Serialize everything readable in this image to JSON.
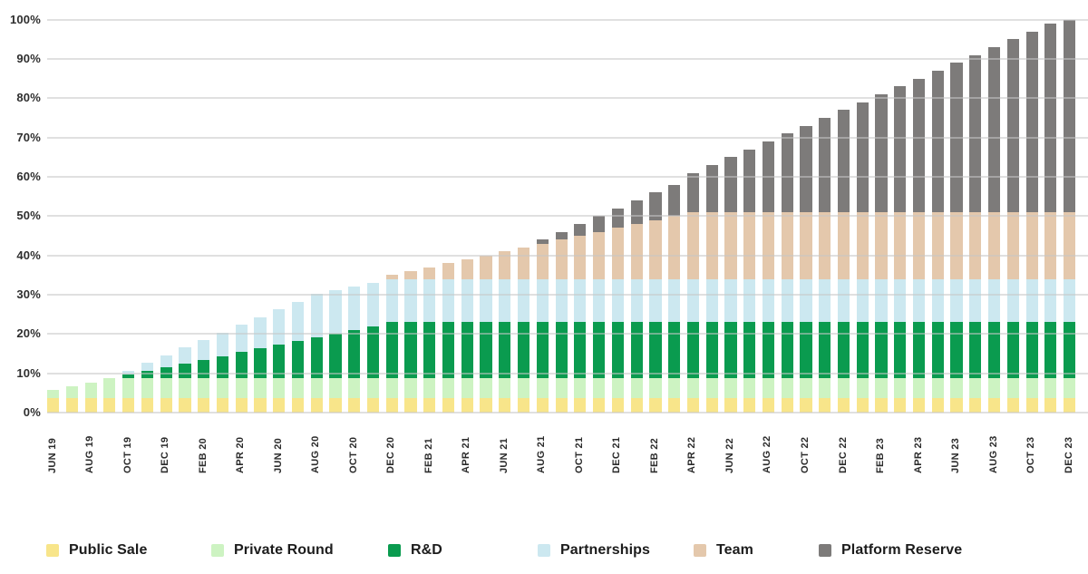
{
  "chart_data": {
    "type": "bar",
    "stacked": true,
    "unit": "%",
    "grid": true,
    "legend_position": "bottom",
    "ylim": [
      0,
      100
    ],
    "y_ticks": [
      "0%",
      "10%",
      "20%",
      "30%",
      "40%",
      "50%",
      "60%",
      "70%",
      "80%",
      "90%",
      "100%"
    ],
    "x_label_every": 2,
    "x": [
      "JUN 19",
      "JUL 19",
      "AUG 19",
      "SEP 19",
      "OCT 19",
      "NOV 19",
      "DEC 19",
      "JAN 20",
      "FEB 20",
      "MAR 20",
      "APR 20",
      "MAY 20",
      "JUN 20",
      "JUL 20",
      "AUG 20",
      "SEP 20",
      "OCT 20",
      "NOV 20",
      "DEC 20",
      "JAN 21",
      "FEB 21",
      "MAR 21",
      "APR 21",
      "MAY 21",
      "JUN 21",
      "JUL 21",
      "AUG 21",
      "SEP 21",
      "OCT 21",
      "NOV 21",
      "DEC 21",
      "JAN 22",
      "FEB 22",
      "MAR 22",
      "APR 22",
      "MAY 22",
      "JUN 22",
      "JUL 22",
      "AUG 22",
      "SEP 22",
      "OCT 22",
      "NOV 22",
      "DEC 22",
      "JAN 23",
      "FEB 23",
      "MAR 23",
      "APR 23",
      "MAY 23",
      "JUN 23",
      "JUL 23",
      "AUG 23",
      "SEP 23",
      "OCT 23",
      "NOV 23",
      "DEC 23"
    ],
    "x_tick_labels": [
      "JUN 19",
      "AUG 19",
      "OCT 19",
      "DEC 19",
      "FEB 20",
      "APR 20",
      "JUN 20",
      "AUG 20",
      "OCT 20",
      "DEC 20",
      "FEB 21",
      "APR 21",
      "JUN 21",
      "AUG 21",
      "OCT 21",
      "DEC 21",
      "FEB 22",
      "APR 22",
      "JUN 22",
      "AUG 22",
      "OCT 22",
      "DEC 22",
      "FEB 23",
      "APR 23",
      "JUN 23",
      "AUG 23",
      "OCT 23",
      "DEC 23"
    ],
    "series": [
      {
        "name": "Public Sale",
        "color": "#F8E58A",
        "values": [
          3.7,
          3.7,
          3.7,
          3.7,
          3.7,
          3.7,
          3.7,
          3.7,
          3.7,
          3.7,
          3.7,
          3.7,
          3.7,
          3.7,
          3.7,
          3.7,
          3.7,
          3.7,
          3.7,
          3.7,
          3.7,
          3.7,
          3.7,
          3.7,
          3.7,
          3.7,
          3.7,
          3.7,
          3.7,
          3.7,
          3.7,
          3.7,
          3.7,
          3.7,
          3.7,
          3.7,
          3.7,
          3.7,
          3.7,
          3.7,
          3.7,
          3.7,
          3.7,
          3.7,
          3.7,
          3.7,
          3.7,
          3.7,
          3.7,
          3.7,
          3.7,
          3.7,
          3.7,
          3.7,
          3.7
        ]
      },
      {
        "name": "Private Round",
        "color": "#CDF3C2",
        "values": [
          2,
          3,
          4,
          5,
          5,
          5,
          5,
          5,
          5,
          5,
          5,
          5,
          5,
          5,
          5,
          5,
          5,
          5,
          5,
          5,
          5,
          5,
          5,
          5,
          5,
          5,
          5,
          5,
          5,
          5,
          5,
          5,
          5,
          5,
          5,
          5,
          5,
          5,
          5,
          5,
          5,
          5,
          5,
          5,
          5,
          5,
          5,
          5,
          5,
          5,
          5,
          5,
          5,
          5,
          5
        ]
      },
      {
        "name": "R&D",
        "color": "#0A9B4F",
        "values": [
          0,
          0,
          0,
          0,
          0.95,
          1.9,
          2.85,
          3.8,
          4.75,
          5.7,
          6.65,
          7.6,
          8.55,
          9.5,
          10.45,
          11.4,
          12.35,
          13.3,
          14.25,
          14.3,
          14.3,
          14.3,
          14.3,
          14.3,
          14.3,
          14.3,
          14.3,
          14.3,
          14.3,
          14.3,
          14.3,
          14.3,
          14.3,
          14.3,
          14.3,
          14.3,
          14.3,
          14.3,
          14.3,
          14.3,
          14.3,
          14.3,
          14.3,
          14.3,
          14.3,
          14.3,
          14.3,
          14.3,
          14.3,
          14.3,
          14.3,
          14.3,
          14.3,
          14.3,
          14.3
        ]
      },
      {
        "name": "Partnerships",
        "color": "#CCE8F0",
        "values": [
          0,
          0,
          0,
          0,
          1,
          2,
          3,
          4,
          5,
          6,
          7,
          8,
          9,
          10,
          11,
          11,
          11,
          11,
          11,
          11,
          11,
          11,
          11,
          11,
          11,
          11,
          11,
          11,
          11,
          11,
          11,
          11,
          11,
          11,
          11,
          11,
          11,
          11,
          11,
          11,
          11,
          11,
          11,
          11,
          11,
          11,
          11,
          11,
          11,
          11,
          11,
          11,
          11,
          11,
          11
        ]
      },
      {
        "name": "Team",
        "color": "#E4C8AC",
        "values": [
          0,
          0,
          0,
          0,
          0,
          0,
          0,
          0,
          0,
          0,
          0,
          0,
          0,
          0,
          0,
          0,
          0,
          0,
          1,
          2,
          3,
          4,
          5,
          6,
          7,
          8,
          9,
          10,
          11,
          12,
          13,
          14,
          15,
          16,
          17,
          17,
          17,
          17,
          17,
          17,
          17,
          17,
          17,
          17,
          17,
          17,
          17,
          17,
          17,
          17,
          17,
          17,
          17,
          17,
          17
        ]
      },
      {
        "name": "Platform Reserve",
        "color": "#7D7B7A",
        "values": [
          0,
          0,
          0,
          0,
          0,
          0,
          0,
          0,
          0,
          0,
          0,
          0,
          0,
          0,
          0,
          0,
          0,
          0,
          0,
          0,
          0,
          0,
          0,
          0,
          0,
          0,
          1,
          2,
          3,
          4,
          5,
          6,
          7,
          8,
          10,
          12,
          14,
          16,
          18,
          20,
          22,
          24,
          26,
          28,
          30,
          32,
          34,
          36,
          38,
          40,
          42,
          44,
          46,
          48,
          49
        ]
      }
    ]
  },
  "layout_labels": {
    "legend_names": [
      "Public Sale",
      "Private Round",
      "R&D",
      "Partnerships",
      "Team",
      "Platform Reserve"
    ]
  }
}
